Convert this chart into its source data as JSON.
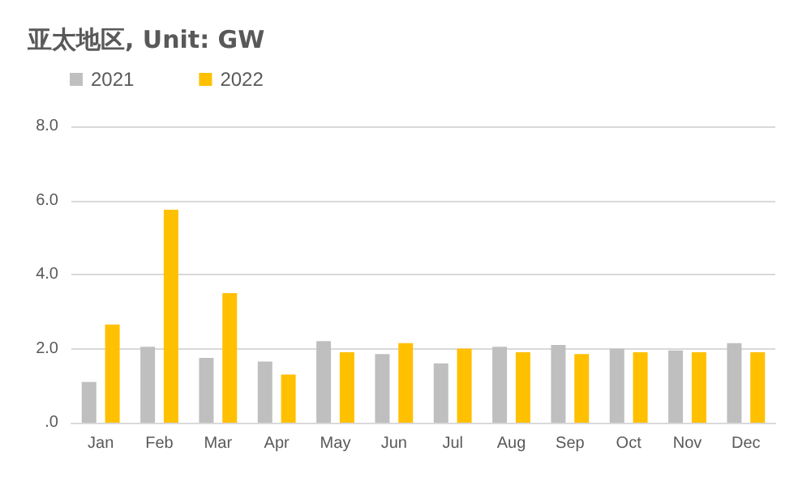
{
  "chart_data": {
    "type": "bar",
    "title": "亚太地区, Unit: GW",
    "categories": [
      "Jan",
      "Feb",
      "Mar",
      "Apr",
      "May",
      "Jun",
      "Jul",
      "Aug",
      "Sep",
      "Oct",
      "Nov",
      "Dec"
    ],
    "series": [
      {
        "name": "2021",
        "color": "#bfbfbf",
        "values": [
          1.1,
          2.05,
          1.75,
          1.65,
          2.2,
          1.85,
          1.6,
          2.05,
          2.1,
          2.0,
          1.95,
          2.15
        ]
      },
      {
        "name": "2022",
        "color": "#ffc000",
        "values": [
          2.65,
          5.75,
          3.5,
          1.3,
          1.9,
          2.15,
          2.0,
          1.9,
          1.85,
          1.9,
          1.9,
          1.9
        ]
      }
    ],
    "ylim": [
      0,
      8
    ],
    "yticks": [
      {
        "value": 0,
        "label": ".0"
      },
      {
        "value": 2,
        "label": "2.0"
      },
      {
        "value": 4,
        "label": "4.0"
      },
      {
        "value": 6,
        "label": "6.0"
      },
      {
        "value": 8,
        "label": "8.0"
      }
    ],
    "grid": "y",
    "legend": "top left"
  }
}
